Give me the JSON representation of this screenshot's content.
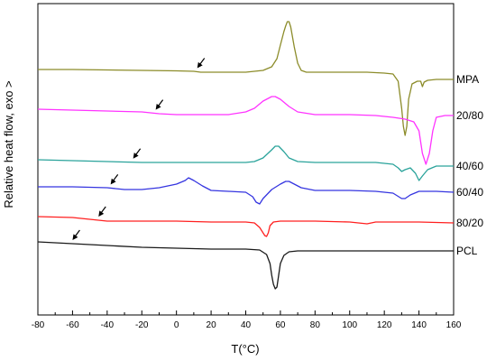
{
  "chart_data": {
    "type": "line",
    "xlabel": "T(°C)",
    "ylabel": "Relative heat flow, exo >",
    "xlim": [
      -80,
      160
    ],
    "xticks": [
      -80,
      -60,
      -40,
      -20,
      0,
      20,
      40,
      60,
      80,
      100,
      120,
      140,
      160
    ],
    "yticks_shown": false,
    "grid": false,
    "legend": "series labels at right end of each curve",
    "series": [
      {
        "name": "MPA",
        "color": "#8c8c2a",
        "tg_arrow_x": 12,
        "points": [
          [
            -80,
            77
          ],
          [
            -60,
            77
          ],
          [
            -40,
            77.5
          ],
          [
            -20,
            78
          ],
          [
            0,
            78.5
          ],
          [
            10,
            79
          ],
          [
            14,
            80
          ],
          [
            20,
            80
          ],
          [
            30,
            80
          ],
          [
            40,
            80
          ],
          [
            50,
            78
          ],
          [
            55,
            74
          ],
          [
            58,
            65
          ],
          [
            60,
            50
          ],
          [
            62,
            35
          ],
          [
            63,
            29
          ],
          [
            64,
            24
          ],
          [
            65,
            24
          ],
          [
            66,
            30
          ],
          [
            68,
            52
          ],
          [
            70,
            70
          ],
          [
            72,
            78
          ],
          [
            75,
            80
          ],
          [
            90,
            80
          ],
          [
            110,
            80
          ],
          [
            120,
            81
          ],
          [
            125,
            82
          ],
          [
            128,
            90
          ],
          [
            130,
            120
          ],
          [
            131,
            140
          ],
          [
            132,
            150
          ],
          [
            133,
            140
          ],
          [
            134,
            110
          ],
          [
            136,
            93
          ],
          [
            139,
            90
          ],
          [
            141,
            90
          ],
          [
            142,
            96
          ],
          [
            143,
            91
          ],
          [
            145,
            89
          ],
          [
            150,
            88
          ],
          [
            160,
            88
          ]
        ]
      },
      {
        "name": "20/80",
        "color": "#ff33ff",
        "tg_arrow_x": -12,
        "points": [
          [
            -80,
            121
          ],
          [
            -60,
            122
          ],
          [
            -40,
            123
          ],
          [
            -20,
            124
          ],
          [
            -10,
            126
          ],
          [
            0,
            127
          ],
          [
            10,
            127
          ],
          [
            20,
            127
          ],
          [
            30,
            127
          ],
          [
            40,
            124
          ],
          [
            45,
            120
          ],
          [
            50,
            112
          ],
          [
            55,
            107
          ],
          [
            57,
            107
          ],
          [
            60,
            110
          ],
          [
            65,
            118
          ],
          [
            70,
            124
          ],
          [
            80,
            127
          ],
          [
            100,
            127
          ],
          [
            115,
            128
          ],
          [
            125,
            130
          ],
          [
            132,
            132
          ],
          [
            137,
            135
          ],
          [
            140,
            145
          ],
          [
            142,
            170
          ],
          [
            144,
            182
          ],
          [
            146,
            170
          ],
          [
            148,
            145
          ],
          [
            150,
            130
          ],
          [
            155,
            128
          ],
          [
            160,
            128
          ]
        ]
      },
      {
        "name": "40/60",
        "color": "#2aa39b",
        "tg_arrow_x": -25,
        "points": [
          [
            -80,
            177
          ],
          [
            -60,
            178
          ],
          [
            -40,
            179
          ],
          [
            -20,
            180
          ],
          [
            0,
            180
          ],
          [
            20,
            180
          ],
          [
            40,
            180
          ],
          [
            45,
            179
          ],
          [
            50,
            175
          ],
          [
            55,
            166
          ],
          [
            57,
            162
          ],
          [
            59,
            162
          ],
          [
            62,
            168
          ],
          [
            65,
            175
          ],
          [
            70,
            179
          ],
          [
            80,
            180
          ],
          [
            100,
            180
          ],
          [
            115,
            180
          ],
          [
            120,
            181
          ],
          [
            125,
            182
          ],
          [
            128,
            186
          ],
          [
            130,
            190
          ],
          [
            132,
            188
          ],
          [
            135,
            186
          ],
          [
            138,
            192
          ],
          [
            140,
            200
          ],
          [
            142,
            195
          ],
          [
            145,
            188
          ],
          [
            150,
            184
          ],
          [
            160,
            184
          ]
        ]
      },
      {
        "name": "60/40",
        "color": "#3535e0",
        "tg_arrow_x": -38,
        "points": [
          [
            -80,
            207
          ],
          [
            -60,
            207
          ],
          [
            -40,
            208
          ],
          [
            -30,
            210
          ],
          [
            -20,
            210
          ],
          [
            -10,
            208
          ],
          [
            0,
            204
          ],
          [
            5,
            200
          ],
          [
            7,
            197
          ],
          [
            10,
            200
          ],
          [
            15,
            206
          ],
          [
            20,
            211
          ],
          [
            30,
            212
          ],
          [
            40,
            213
          ],
          [
            44,
            218
          ],
          [
            46,
            224
          ],
          [
            48,
            226
          ],
          [
            50,
            220
          ],
          [
            55,
            210
          ],
          [
            60,
            204
          ],
          [
            63,
            201
          ],
          [
            65,
            201
          ],
          [
            68,
            204
          ],
          [
            72,
            208
          ],
          [
            80,
            211
          ],
          [
            100,
            211
          ],
          [
            115,
            212
          ],
          [
            125,
            214
          ],
          [
            130,
            220
          ],
          [
            132,
            220
          ],
          [
            135,
            216
          ],
          [
            140,
            212
          ],
          [
            150,
            212
          ],
          [
            160,
            213
          ]
        ]
      },
      {
        "name": "80/20",
        "color": "#ff2020",
        "tg_arrow_x": -45,
        "points": [
          [
            -80,
            240
          ],
          [
            -60,
            241
          ],
          [
            -50,
            243
          ],
          [
            -40,
            245
          ],
          [
            -20,
            245
          ],
          [
            0,
            245
          ],
          [
            20,
            246
          ],
          [
            30,
            246
          ],
          [
            40,
            246
          ],
          [
            45,
            247
          ],
          [
            48,
            252
          ],
          [
            50,
            258
          ],
          [
            51,
            261
          ],
          [
            52,
            262
          ],
          [
            53,
            258
          ],
          [
            54,
            250
          ],
          [
            56,
            246
          ],
          [
            60,
            245
          ],
          [
            80,
            245
          ],
          [
            100,
            246
          ],
          [
            110,
            248
          ],
          [
            115,
            246
          ],
          [
            120,
            246
          ],
          [
            140,
            246
          ],
          [
            160,
            247
          ]
        ]
      },
      {
        "name": "PCL",
        "color": "#1a1a1a",
        "tg_arrow_x": -60,
        "points": [
          [
            -80,
            268
          ],
          [
            -60,
            270
          ],
          [
            -40,
            272
          ],
          [
            -20,
            274
          ],
          [
            0,
            275
          ],
          [
            20,
            276
          ],
          [
            40,
            276
          ],
          [
            48,
            277
          ],
          [
            52,
            282
          ],
          [
            54,
            292
          ],
          [
            55,
            305
          ],
          [
            56,
            315
          ],
          [
            57,
            320
          ],
          [
            58,
            318
          ],
          [
            59,
            305
          ],
          [
            60,
            292
          ],
          [
            62,
            283
          ],
          [
            65,
            279
          ],
          [
            70,
            278
          ],
          [
            80,
            278
          ],
          [
            100,
            278
          ],
          [
            120,
            278
          ],
          [
            140,
            278
          ],
          [
            160,
            278
          ]
        ]
      }
    ]
  }
}
